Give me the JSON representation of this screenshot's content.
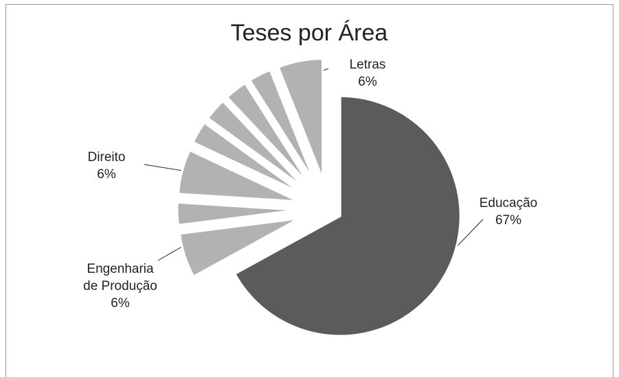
{
  "chart_data": {
    "type": "pie",
    "title": "Teses por Área",
    "categories": [
      "Educação",
      "Engenharia de Produção",
      null,
      "Direito",
      null,
      null,
      null,
      null,
      "Letras"
    ],
    "values": [
      67,
      6,
      3,
      6,
      3,
      3,
      3,
      3,
      6
    ],
    "value_labels": [
      "67%",
      "6%",
      null,
      "6%",
      null,
      null,
      null,
      null,
      "6%"
    ],
    "colors": [
      "#5b5b5b",
      "#b2b2b2",
      "#b2b2b2",
      "#b2b2b2",
      "#b2b2b2",
      "#b2b2b2",
      "#b2b2b2",
      "#b2b2b2",
      "#b2b2b2"
    ]
  }
}
